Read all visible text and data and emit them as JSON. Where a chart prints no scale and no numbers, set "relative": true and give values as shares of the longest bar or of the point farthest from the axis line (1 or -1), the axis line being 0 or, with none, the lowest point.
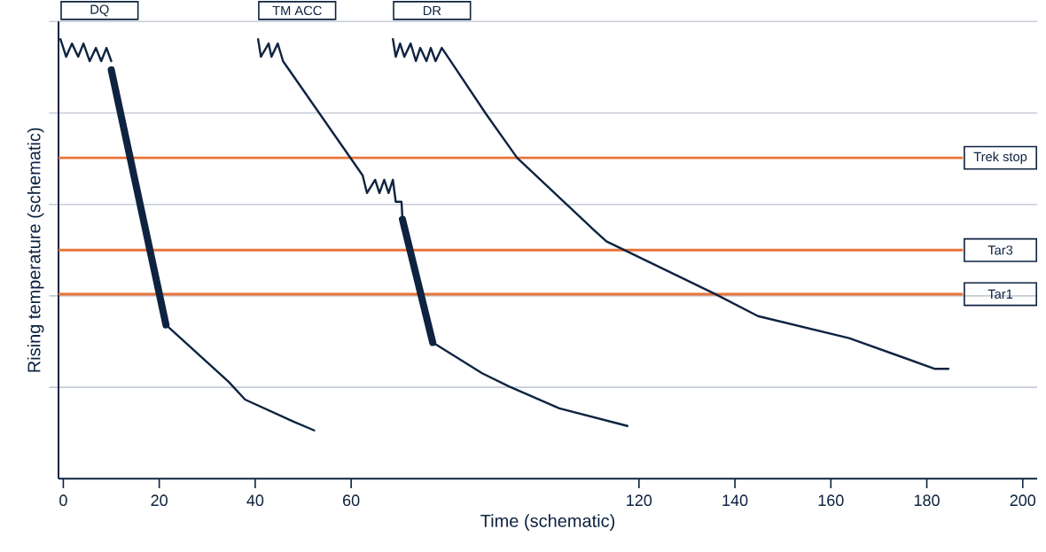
{
  "chart_data": {
    "type": "line",
    "relative": true,
    "xlabel": "Time (schematic)",
    "ylabel": "Rising temperature (schematic)",
    "xlim": [
      -1,
      203
    ],
    "xticks": [
      0,
      20,
      40,
      60,
      120,
      140,
      160,
      180,
      200
    ],
    "grid": "y",
    "marker": "none",
    "line_style": "solid",
    "series": [
      {
        "name": "DQ",
        "color": "#0d2340",
        "x": [
          -0.6,
          0.6,
          1.8,
          3.1,
          4.2,
          5.5,
          6.8,
          7.9,
          9.0,
          10.0
        ],
        "values": [
          1.0,
          0.96,
          0.99,
          0.96,
          0.99,
          0.95,
          0.98,
          0.95,
          0.98,
          0.95
        ]
      },
      {
        "color": "#0d2340",
        "x": [
          10.0,
          21.4
        ],
        "values": [
          0.93,
          0.35
        ]
      },
      {
        "color": "#0d2340",
        "x": [
          21.4,
          34.5,
          37.9,
          48.0,
          52.3
        ],
        "values": [
          0.35,
          0.22,
          0.18,
          0.13,
          0.11
        ]
      },
      {
        "name": "TM ACC",
        "color": "#0d2340",
        "x": [
          40.6,
          41.2,
          42.8,
          43.4,
          44.7,
          45.8,
          62.4,
          63.3,
          65.0,
          65.9,
          66.9,
          67.8,
          68.7,
          69.3,
          70.5,
          70.7
        ],
        "values": [
          1.0,
          0.96,
          0.99,
          0.96,
          0.99,
          0.95,
          0.69,
          0.65,
          0.68,
          0.65,
          0.68,
          0.65,
          0.68,
          0.63,
          0.63,
          0.59
        ]
      },
      {
        "color": "#0d2340",
        "x": [
          70.7,
          77.0
        ],
        "values": [
          0.59,
          0.31
        ]
      },
      {
        "color": "#0d2340",
        "x": [
          77.0,
          87.3,
          92.9,
          103.4,
          117.6
        ],
        "values": [
          0.31,
          0.24,
          0.21,
          0.16,
          0.12
        ]
      },
      {
        "name": "DR",
        "color": "#0d2340",
        "x": [
          68.7,
          69.3,
          70.2,
          71.1,
          72.4,
          73.5,
          74.4,
          75.7,
          76.6,
          77.6,
          78.9,
          88.1,
          94.6,
          110.2,
          113.2,
          135.9,
          144.8,
          163.8,
          181.7,
          184.5
        ],
        "values": [
          1.0,
          0.96,
          0.99,
          0.96,
          0.99,
          0.95,
          0.98,
          0.95,
          0.98,
          0.95,
          0.98,
          0.83,
          0.73,
          0.57,
          0.54,
          0.42,
          0.37,
          0.32,
          0.25,
          0.25
        ]
      }
    ],
    "ref_lines": [
      {
        "axis": "y",
        "value": 0.73,
        "label": "Trek stop",
        "color": "#e8743b"
      },
      {
        "axis": "y",
        "value": 0.52,
        "label": "Tar3",
        "color": "#e8743b"
      },
      {
        "axis": "y",
        "value": 0.42,
        "label": "Tar1",
        "color": "#e8743b"
      }
    ]
  }
}
